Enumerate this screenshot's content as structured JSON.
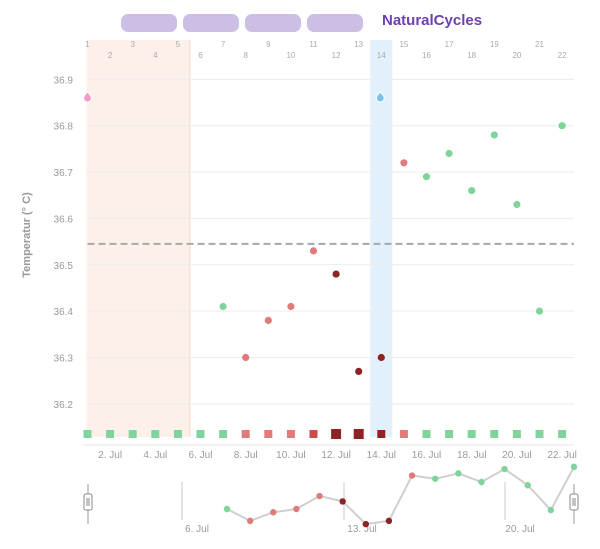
{
  "header": {
    "brand": "NaturalCycles",
    "tabs": [
      "",
      "",
      "",
      ""
    ]
  },
  "colors": {
    "period_band": "#fdf0ea",
    "ovulation_band": "#e2f0fb",
    "fertile_red": "#e07b7b",
    "mid_red": "#c94c4c",
    "dark_red": "#8e2323",
    "green": "#7fd49c",
    "coverline": "#a8a8a8",
    "period_drop": "#f39acb",
    "ovulation_drop": "#7cc2f0"
  },
  "chart_data": {
    "type": "scatter",
    "title": "",
    "ylabel": "Temperatur (° C)",
    "ylim": [
      36.12,
      36.98
    ],
    "yticks": [
      "36.2",
      "36.3",
      "36.4",
      "36.5",
      "36.6",
      "36.7",
      "36.8",
      "36.9"
    ],
    "cycle_days": [
      "1",
      "2",
      "3",
      "4",
      "5",
      "6",
      "7",
      "8",
      "9",
      "10",
      "11",
      "12",
      "13",
      "14",
      "15",
      "16",
      "17",
      "18",
      "19",
      "20",
      "21",
      "22"
    ],
    "date_labels": [
      "2. Jul",
      "4. Jul",
      "6. Jul",
      "8. Jul",
      "10. Jul",
      "12. Jul",
      "14. Jul",
      "16. Jul",
      "18. Jul",
      "20. Jul",
      "22. Jul"
    ],
    "period_days": [
      1,
      5
    ],
    "ovulation_day": 14,
    "coverline": 36.545,
    "temperatures": [
      {
        "day": 7,
        "value": 36.41,
        "status": "green"
      },
      {
        "day": 8,
        "value": 36.3,
        "status": "red"
      },
      {
        "day": 9,
        "value": 36.38,
        "status": "red"
      },
      {
        "day": 10,
        "value": 36.41,
        "status": "red"
      },
      {
        "day": 11,
        "value": 36.53,
        "status": "red"
      },
      {
        "day": 12,
        "value": 36.48,
        "status": "dark"
      },
      {
        "day": 13,
        "value": 36.27,
        "status": "dark"
      },
      {
        "day": 14,
        "value": 36.3,
        "status": "dark"
      },
      {
        "day": 15,
        "value": 36.72,
        "status": "red"
      },
      {
        "day": 16,
        "value": 36.69,
        "status": "green"
      },
      {
        "day": 17,
        "value": 36.74,
        "status": "green"
      },
      {
        "day": 18,
        "value": 36.66,
        "status": "green"
      },
      {
        "day": 19,
        "value": 36.78,
        "status": "green"
      },
      {
        "day": 20,
        "value": 36.63,
        "status": "green"
      },
      {
        "day": 21,
        "value": 36.4,
        "status": "green"
      },
      {
        "day": 22,
        "value": 36.8,
        "status": "green"
      }
    ],
    "day_status": [
      "green",
      "green",
      "green",
      "green",
      "green",
      "green",
      "green",
      "red",
      "red",
      "red",
      "mid",
      "dark",
      "dark",
      "dark",
      "red",
      "green",
      "green",
      "green",
      "green",
      "green",
      "green",
      "green"
    ],
    "big_squares": [
      12,
      13
    ],
    "navigator": {
      "labels": [
        "6. Jul",
        "13. Jul",
        "20. Jul"
      ],
      "points": [
        {
          "value": 36.41,
          "status": "green"
        },
        {
          "value": 36.3,
          "status": "red"
        },
        {
          "value": 36.38,
          "status": "red"
        },
        {
          "value": 36.41,
          "status": "red"
        },
        {
          "value": 36.53,
          "status": "red"
        },
        {
          "value": 36.48,
          "status": "dark"
        },
        {
          "value": 36.27,
          "status": "dark"
        },
        {
          "value": 36.3,
          "status": "dark"
        },
        {
          "value": 36.72,
          "status": "red"
        },
        {
          "value": 36.69,
          "status": "green"
        },
        {
          "value": 36.74,
          "status": "green"
        },
        {
          "value": 36.66,
          "status": "green"
        },
        {
          "value": 36.78,
          "status": "green"
        },
        {
          "value": 36.63,
          "status": "green"
        },
        {
          "value": 36.4,
          "status": "green"
        },
        {
          "value": 36.8,
          "status": "green"
        }
      ]
    }
  }
}
